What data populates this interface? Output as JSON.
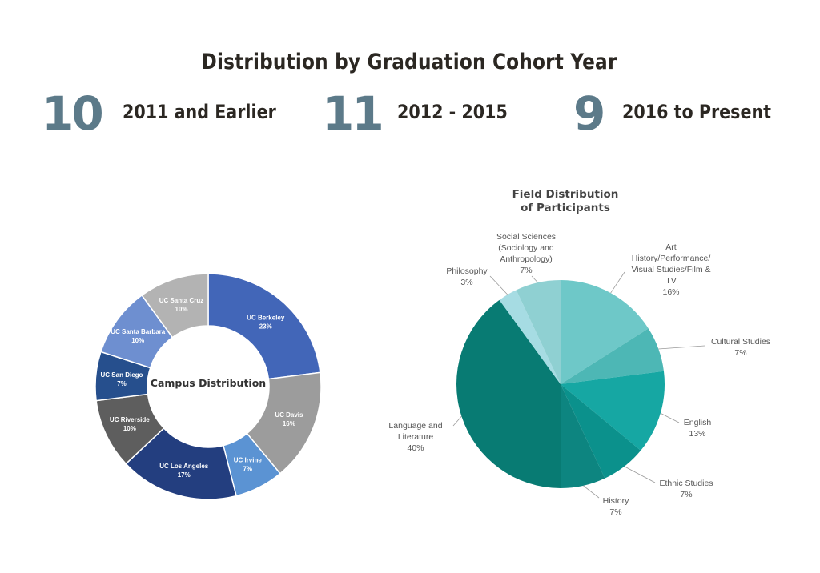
{
  "header": {
    "title": "Distribution by Graduation Cohort Year"
  },
  "cohorts": [
    {
      "number": "10",
      "label": "2011 and Earlier"
    },
    {
      "number": "11",
      "label": "2012 - 2015"
    },
    {
      "number": "9",
      "label": "2016 to Present"
    }
  ],
  "colors": {
    "accent_number": "#5c7a89",
    "heading": "#2b2722"
  },
  "chart_data": [
    {
      "type": "pie",
      "variant": "donut",
      "title": "Campus Distribution",
      "slices": [
        {
          "label": "UC Berkeley",
          "value": 23,
          "value_label": "23%",
          "color": "#4266b8"
        },
        {
          "label": "UC Davis",
          "value": 16,
          "value_label": "16%",
          "color": "#9c9c9c"
        },
        {
          "label": "UC Irvine",
          "value": 7,
          "value_label": "7%",
          "color": "#5b93d3"
        },
        {
          "label": "UC Los Angeles",
          "value": 17,
          "value_label": "17%",
          "color": "#233e7f"
        },
        {
          "label": "UC Riverside",
          "value": 10,
          "value_label": "10%",
          "color": "#5e5e5e"
        },
        {
          "label": "UC San Diego",
          "value": 7,
          "value_label": "7%",
          "color": "#264f8d"
        },
        {
          "label": "UC Santa Barbara",
          "value": 10,
          "value_label": "10%",
          "color": "#6e8fd0"
        },
        {
          "label": "UC Santa Cruz",
          "value": 10,
          "value_label": "10%",
          "color": "#b3b3b3"
        }
      ]
    },
    {
      "type": "pie",
      "title": "Field Distribution of Participants",
      "title_lines": [
        "Field Distribution",
        "of Participants"
      ],
      "slices": [
        {
          "label": "Art History/Performance/ Visual Studies/Film & TV",
          "label_lines": [
            "Art",
            "History/Performance/",
            "Visual Studies/Film &",
            "TV"
          ],
          "value": 16,
          "value_label": "16%",
          "color": "#6ec8c8"
        },
        {
          "label": "Cultural Studies",
          "label_lines": [
            "Cultural Studies"
          ],
          "value": 7,
          "value_label": "7%",
          "color": "#4db7b5"
        },
        {
          "label": "English",
          "label_lines": [
            "English"
          ],
          "value": 13,
          "value_label": "13%",
          "color": "#16a7a3"
        },
        {
          "label": "Ethnic Studies",
          "label_lines": [
            "Ethnic Studies"
          ],
          "value": 7,
          "value_label": "7%",
          "color": "#0b918c"
        },
        {
          "label": "History",
          "label_lines": [
            "History"
          ],
          "value": 7,
          "value_label": "7%",
          "color": "#0d8580"
        },
        {
          "label": "Language and Literature",
          "label_lines": [
            "Language and",
            "Literature"
          ],
          "value": 40,
          "value_label": "40%",
          "color": "#087b73"
        },
        {
          "label": "Philosophy",
          "label_lines": [
            "Philosophy"
          ],
          "value": 3,
          "value_label": "3%",
          "color": "#a6dce3"
        },
        {
          "label": "Social Sciences (Sociology and Anthropology)",
          "label_lines": [
            "Social Sciences",
            "(Sociology and",
            "Anthropology)"
          ],
          "value": 7,
          "value_label": "7%",
          "color": "#8fd0d2"
        }
      ]
    }
  ]
}
